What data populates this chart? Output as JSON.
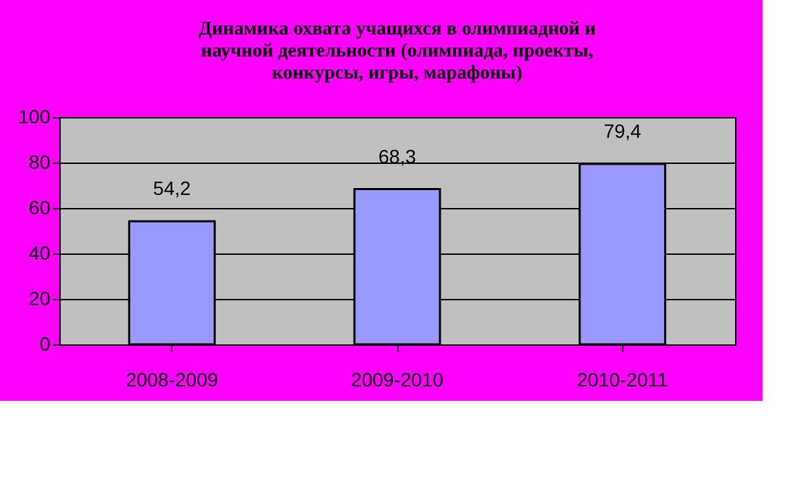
{
  "chart_data": {
    "type": "bar",
    "title": "Динамика охвата учащихся в олимпиадной и научной деятельности (олимпиада, проекты, конкурсы, игры, марафоны)",
    "categories": [
      "2008-2009",
      "2009-2010",
      "2010-2011"
    ],
    "values": [
      54.2,
      68.3,
      79.4
    ],
    "value_labels": [
      "54,2",
      "68,3",
      "79,4"
    ],
    "color": "#9999ff",
    "ylim": [
      0,
      100
    ],
    "yticks": [
      0,
      20,
      40,
      60,
      80,
      100
    ],
    "grid": "y"
  }
}
